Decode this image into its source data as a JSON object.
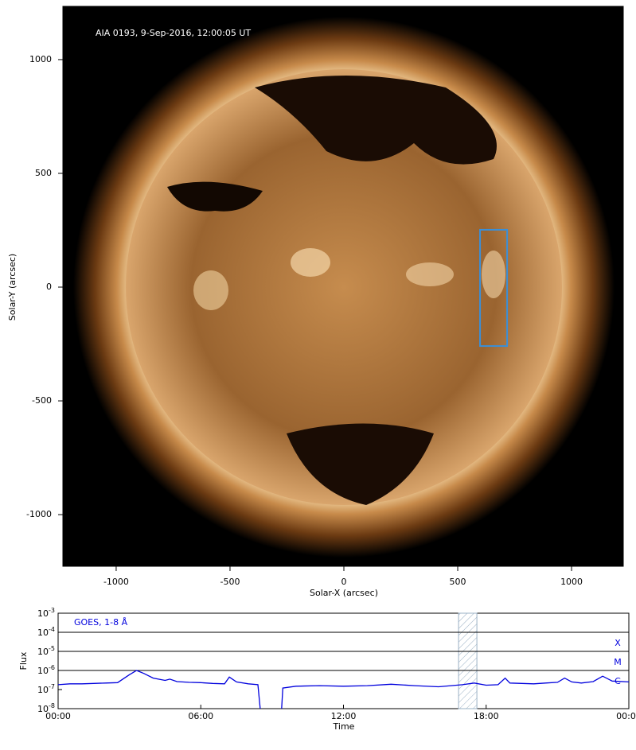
{
  "chart_data": [
    {
      "type": "image",
      "title": "AIA 0193, 9-Sep-2016, 12:00:05 UT",
      "xlabel": "Solar-X (arcsec)",
      "ylabel": "Solar-Y (arcsec)",
      "xlim": [
        -1234,
        1227
      ],
      "ylim": [
        -1227,
        1234
      ],
      "xticks": [
        -1000,
        -500,
        0,
        500,
        1000
      ],
      "yticks": [
        -1000,
        -500,
        0,
        500,
        1000
      ],
      "box": {
        "x": [
          598,
          717
        ],
        "y": [
          -259,
          252
        ],
        "color": "#3a8fd8"
      }
    },
    {
      "type": "line",
      "ylabel": "Flux",
      "xlabel": "Time",
      "annotation": "GOES, 1-8 Å",
      "color": "#0000dd",
      "log_y": true,
      "x": [
        0,
        0.5,
        1,
        1.5,
        2,
        2.5,
        3,
        3.3,
        3.6,
        4,
        4.5,
        4.7,
        5,
        5.5,
        6,
        6.5,
        7,
        7.2,
        7.5,
        8,
        8.4,
        8.5,
        9,
        9.4,
        9.45,
        10,
        11,
        12,
        13,
        14,
        15,
        16,
        17,
        17.5,
        18,
        18.5,
        18.8,
        19,
        20,
        20.5,
        21,
        21.3,
        21.6,
        22,
        22.5,
        22.9,
        23.3,
        24
      ],
      "values": [
        1.8e-07,
        2e-07,
        2e-07,
        2.1e-07,
        2.2e-07,
        2.3e-07,
        6e-07,
        1e-06,
        7e-07,
        4e-07,
        3e-07,
        3.5e-07,
        2.6e-07,
        2.4e-07,
        2.3e-07,
        2.1e-07,
        2e-07,
        4.5e-07,
        2.5e-07,
        2e-07,
        1.8e-07,
        1e-08,
        null,
        1e-08,
        1.2e-07,
        1.5e-07,
        1.6e-07,
        1.5e-07,
        1.6e-07,
        1.9e-07,
        1.6e-07,
        1.4e-07,
        1.8e-07,
        2.2e-07,
        1.7e-07,
        1.8e-07,
        4e-07,
        2.2e-07,
        2e-07,
        2.2e-07,
        2.4e-07,
        4e-07,
        2.5e-07,
        2.2e-07,
        2.6e-07,
        5e-07,
        2.8e-07,
        2.5e-07
      ],
      "xlim": [
        0,
        24
      ],
      "xticks": [
        {
          "value": 0,
          "label": "00:00"
        },
        {
          "value": 6,
          "label": "06:00"
        },
        {
          "value": 12,
          "label": "12:00"
        },
        {
          "value": 18,
          "label": "18:00"
        },
        {
          "value": 24,
          "label": "00:00"
        }
      ],
      "ylim": [
        1e-08,
        0.001
      ],
      "yticks": [
        {
          "value": 1e-08,
          "label": {
            "base": "10",
            "exp": "-8"
          }
        },
        {
          "value": 1e-07,
          "label": {
            "base": "10",
            "exp": "-7"
          }
        },
        {
          "value": 1e-06,
          "label": {
            "base": "10",
            "exp": "-6"
          }
        },
        {
          "value": 1e-05,
          "label": {
            "base": "10",
            "exp": "-5"
          }
        },
        {
          "value": 0.0001,
          "label": {
            "base": "10",
            "exp": "-4"
          }
        },
        {
          "value": 0.001,
          "label": {
            "base": "10",
            "exp": "-3"
          }
        }
      ],
      "flare_classes": [
        {
          "label": "X",
          "value": 0.0001
        },
        {
          "label": "M",
          "value": 1e-05
        },
        {
          "label": "C",
          "value": 1e-06
        }
      ],
      "highlight": [
        16.84,
        17.61
      ]
    }
  ]
}
